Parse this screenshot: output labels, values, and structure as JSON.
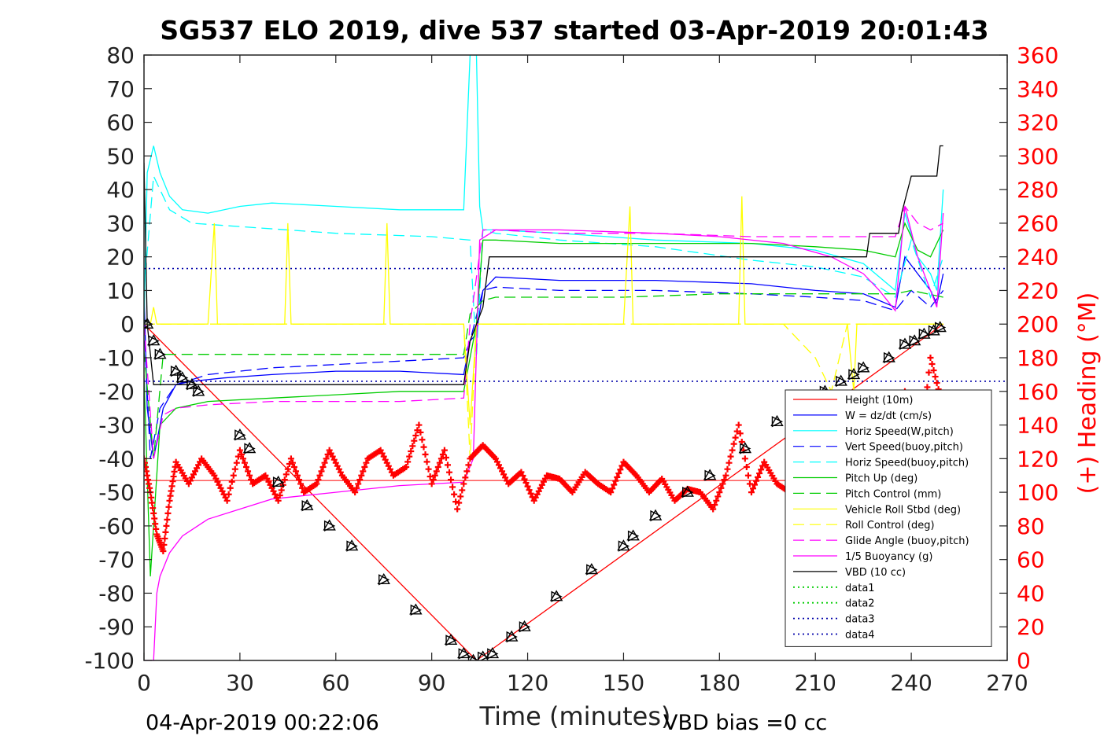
{
  "chart_data": {
    "type": "line",
    "title": "SG537 ELO 2019, dive 537 started 03-Apr-2019 20:01:43",
    "xlabel": "Time (minutes)",
    "ylabel_right": "(+) Heading (°M)",
    "xlim": [
      0,
      270
    ],
    "ylim": [
      -100,
      80
    ],
    "ylim_right": [
      0,
      360
    ],
    "x_ticks": [
      "0",
      "30",
      "60",
      "90",
      "120",
      "150",
      "180",
      "210",
      "240",
      "270"
    ],
    "y_ticks": [
      "80",
      "70",
      "60",
      "50",
      "40",
      "30",
      "20",
      "10",
      "0",
      "-10",
      "-20",
      "-30",
      "-40",
      "-50",
      "-60",
      "-70",
      "-80",
      "-90",
      "-100"
    ],
    "y_ticks_right": [
      "360",
      "340",
      "320",
      "300",
      "280",
      "260",
      "240",
      "220",
      "200",
      "180",
      "160",
      "140",
      "120",
      "100",
      "80",
      "60",
      "40",
      "20",
      "0"
    ],
    "footer_left": "04-Apr-2019 00:22:06",
    "footer_right": "VBD bias =0 cc",
    "legend_position": "bottom-right",
    "grid": false,
    "series": [
      {
        "name": "Height (10m)",
        "color": "#ff0000",
        "style": "solid",
        "x": [
          0,
          104,
          250
        ],
        "y": [
          0,
          -100,
          0
        ]
      },
      {
        "name": "W = dz/dt (cm/s)",
        "color": "#0000ff",
        "style": "solid",
        "x": [
          0,
          1,
          3,
          6,
          10,
          15,
          25,
          40,
          60,
          80,
          100,
          102,
          104,
          106,
          110,
          130,
          160,
          190,
          210,
          225,
          235,
          238,
          242,
          246,
          248,
          250
        ],
        "y": [
          10,
          -25,
          -40,
          -25,
          -18,
          -17,
          -16,
          -15,
          -14,
          -14,
          -15,
          -5,
          -3,
          10,
          14,
          13,
          13,
          12,
          10,
          9,
          5,
          20,
          15,
          10,
          6,
          15
        ]
      },
      {
        "name": "Horiz Speed(W,pitch)",
        "color": "#00ffff",
        "style": "solid",
        "x": [
          0,
          1,
          3,
          5,
          8,
          12,
          20,
          30,
          40,
          60,
          80,
          100,
          102,
          103,
          104,
          105,
          106,
          110,
          130,
          160,
          190,
          210,
          225,
          235,
          238,
          242,
          246,
          248,
          250
        ],
        "y": [
          0,
          45,
          53,
          45,
          38,
          34,
          33,
          35,
          36,
          35,
          34,
          34,
          80,
          80,
          80,
          35,
          28,
          28,
          27,
          25,
          24,
          22,
          18,
          10,
          33,
          20,
          15,
          10,
          40
        ]
      },
      {
        "name": "Vert Speed(buoy,pitch)",
        "color": "#0000ff",
        "style": "dashed",
        "x": [
          0,
          2,
          5,
          10,
          20,
          40,
          60,
          80,
          100,
          102,
          106,
          110,
          130,
          160,
          190,
          210,
          225,
          235,
          240,
          246,
          250
        ],
        "y": [
          0,
          -40,
          -25,
          -18,
          -15,
          -13,
          -12,
          -11,
          -10,
          -5,
          10,
          11,
          10,
          10,
          9,
          8,
          7,
          4,
          10,
          5,
          10
        ]
      },
      {
        "name": "Horiz Speed(buoy,pitch)",
        "color": "#00ffff",
        "style": "dashed",
        "x": [
          0,
          3,
          8,
          15,
          30,
          60,
          90,
          102,
          104,
          106,
          110,
          130,
          160,
          190,
          210,
          225,
          235,
          240,
          246,
          250
        ],
        "y": [
          10,
          44,
          34,
          30,
          29,
          27,
          26,
          25,
          -10,
          28,
          27,
          25,
          23,
          19,
          17,
          14,
          8,
          25,
          8,
          20
        ]
      },
      {
        "name": "Pitch Up (deg)",
        "color": "#00cc00",
        "style": "solid",
        "x": [
          0,
          2,
          5,
          10,
          20,
          40,
          60,
          80,
          100,
          104,
          106,
          110,
          130,
          160,
          190,
          210,
          225,
          235,
          238,
          242,
          246,
          250
        ],
        "y": [
          -15,
          -75,
          -30,
          -25,
          -23,
          -22,
          -21,
          -20,
          -20,
          0,
          25,
          25,
          24,
          24,
          24,
          23,
          22,
          20,
          30,
          22,
          20,
          28
        ]
      },
      {
        "name": "Pitch Control (mm)",
        "color": "#00cc00",
        "style": "dashed",
        "x": [
          0,
          3,
          6,
          100,
          102,
          106,
          110,
          150,
          180,
          210,
          225,
          235,
          240,
          250
        ],
        "y": [
          -8,
          -40,
          -9,
          -9,
          3,
          7,
          8,
          8,
          9,
          9,
          9,
          9,
          10,
          8
        ]
      },
      {
        "name": "Vehicle Roll Stbd (deg)",
        "color": "#ffff00",
        "style": "solid",
        "x": [
          0,
          2,
          3,
          4,
          10,
          20,
          22,
          23,
          30,
          44,
          45,
          46,
          60,
          75,
          76,
          77,
          90,
          100,
          102,
          104,
          106,
          110,
          130,
          150,
          152,
          153,
          170,
          186,
          187,
          188,
          200,
          220,
          222,
          223,
          240,
          250
        ],
        "y": [
          0,
          0,
          5,
          0,
          0,
          0,
          30,
          0,
          0,
          0,
          30,
          0,
          0,
          0,
          30,
          0,
          0,
          0,
          -30,
          0,
          0,
          0,
          0,
          0,
          35,
          0,
          0,
          0,
          38,
          0,
          0,
          0,
          -20,
          0,
          0,
          0
        ]
      },
      {
        "name": "Roll Control (deg)",
        "color": "#ffff00",
        "style": "dashed",
        "x": [
          0,
          50,
          100,
          102,
          104,
          110,
          150,
          200,
          210,
          215,
          220,
          250
        ],
        "y": [
          0,
          0,
          0,
          -40,
          0,
          0,
          0,
          0,
          -10,
          -20,
          0,
          0
        ]
      },
      {
        "name": "Glide Angle (buoy,pitch)",
        "color": "#ff00ff",
        "style": "dashed",
        "x": [
          0,
          3,
          6,
          10,
          20,
          40,
          60,
          80,
          100,
          102,
          106,
          110,
          130,
          160,
          190,
          210,
          225,
          235,
          238,
          242,
          246,
          250
        ],
        "y": [
          0,
          -40,
          -27,
          -25,
          -24,
          -23,
          -23,
          -23,
          -22,
          0,
          28,
          28,
          27,
          27,
          26,
          26,
          26,
          26,
          35,
          30,
          28,
          30
        ]
      },
      {
        "name": "1/5 Buoyancy (g)",
        "color": "#ff00ff",
        "style": "solid",
        "x": [
          0,
          2,
          3,
          4,
          5,
          8,
          12,
          20,
          30,
          40,
          60,
          80,
          100,
          103,
          105,
          110,
          130,
          160,
          180,
          200,
          215,
          225,
          230,
          235,
          238,
          242,
          246,
          248,
          250
        ],
        "y": [
          -100,
          -100,
          -100,
          -80,
          -75,
          -68,
          -63,
          -58,
          -55,
          -52,
          -50,
          -48,
          -47,
          -40,
          25,
          28,
          28,
          27,
          26,
          24,
          20,
          15,
          10,
          4,
          35,
          20,
          10,
          5,
          33
        ]
      },
      {
        "name": "VBD (10 cc)",
        "color": "#000000",
        "style": "solid",
        "x": [
          0,
          1,
          3,
          100,
          102,
          106,
          108,
          110,
          180,
          226,
          227,
          236,
          237,
          240,
          241,
          248,
          249,
          250
        ],
        "y": [
          48,
          0,
          -18,
          -18,
          -5,
          5,
          20,
          20,
          20,
          20,
          27,
          27,
          33,
          44,
          44,
          44,
          53,
          53
        ]
      },
      {
        "name": "data1",
        "color": "#00cc00",
        "style": "dotted",
        "x": [],
        "y": []
      },
      {
        "name": "data2",
        "color": "#00cc00",
        "style": "dotted",
        "x": [],
        "y": []
      },
      {
        "name": "data3",
        "color": "#0000aa",
        "style": "dotted",
        "x": [
          0,
          270
        ],
        "y": [
          16.5,
          16.5
        ]
      },
      {
        "name": "data4",
        "color": "#0000aa",
        "style": "dotted",
        "x": [
          0,
          270
        ],
        "y": [
          -17,
          -17
        ]
      }
    ],
    "heading_series": {
      "axis": "right",
      "color": "#ff0000",
      "marker": "+",
      "x": [
        0,
        2,
        4,
        6,
        8,
        10,
        14,
        18,
        22,
        26,
        30,
        34,
        38,
        42,
        46,
        50,
        54,
        58,
        62,
        66,
        70,
        74,
        78,
        82,
        86,
        90,
        94,
        98,
        102,
        106,
        110,
        114,
        118,
        122,
        126,
        130,
        134,
        138,
        142,
        146,
        150,
        154,
        158,
        162,
        166,
        170,
        174,
        178,
        182,
        186,
        190,
        194,
        198,
        202,
        206,
        210,
        214,
        218,
        222,
        226,
        230,
        234,
        238,
        242,
        246,
        250
      ],
      "y": [
        120,
        100,
        75,
        65,
        95,
        118,
        105,
        120,
        110,
        95,
        125,
        105,
        110,
        95,
        120,
        100,
        105,
        125,
        110,
        100,
        120,
        125,
        110,
        115,
        140,
        105,
        125,
        90,
        120,
        128,
        120,
        105,
        112,
        95,
        110,
        108,
        100,
        112,
        105,
        100,
        118,
        110,
        100,
        108,
        95,
        102,
        100,
        90,
        110,
        140,
        100,
        118,
        105,
        100,
        110,
        115,
        120,
        108,
        130,
        112,
        110,
        125,
        160,
        110,
        180,
        150
      ]
    },
    "heading_reference": {
      "color": "#ff0000",
      "x": [
        0,
        250
      ],
      "y": [
        107,
        107
      ]
    },
    "depth_markers": {
      "color": "#000000",
      "marker": "triangle",
      "x": [
        1,
        3,
        5,
        10,
        12,
        15,
        17,
        30,
        33,
        42,
        51,
        58,
        65,
        75,
        85,
        96,
        100,
        103,
        106,
        109,
        115,
        119,
        129,
        140,
        150,
        153,
        160,
        170,
        177,
        188,
        198,
        213,
        218,
        222,
        225,
        233,
        238,
        241,
        244,
        247,
        249
      ],
      "y": [
        0,
        -5,
        -9,
        -14,
        -16,
        -18,
        -20,
        -33,
        -37,
        -47,
        -54,
        -60,
        -66,
        -76,
        -85,
        -94,
        -98,
        -100,
        -99,
        -98,
        -93,
        -90,
        -81,
        -73,
        -66,
        -63,
        -57,
        -50,
        -45,
        -37,
        -29,
        -20,
        -17,
        -15,
        -13,
        -10,
        -6,
        -5,
        -3,
        -2,
        -1
      ]
    },
    "legend": [
      "Height (10m)",
      "W = dz/dt (cm/s)",
      "Horiz Speed(W,pitch)",
      "Vert Speed(buoy,pitch)",
      "Horiz Speed(buoy,pitch)",
      "Pitch Up (deg)",
      "Pitch Control (mm)",
      "Vehicle Roll Stbd (deg)",
      "Roll Control (deg)",
      "Glide Angle (buoy,pitch)",
      "1/5 Buoyancy (g)",
      "VBD (10 cc)",
      "data1",
      "data2",
      "data3",
      "data4"
    ]
  }
}
